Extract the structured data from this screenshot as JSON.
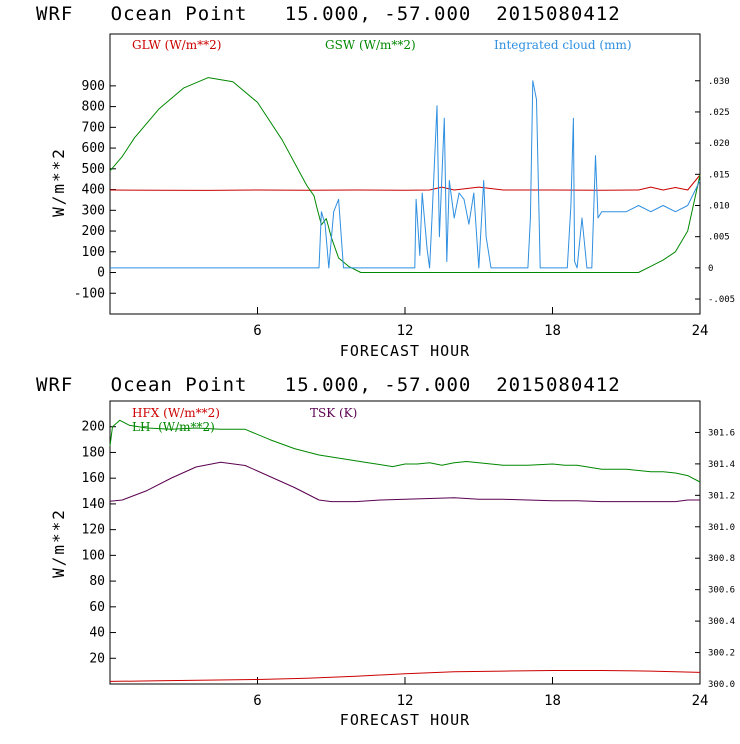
{
  "chart_data": [
    {
      "type": "line",
      "title": "WRF   Ocean Point   15.000, -57.000  2015080412",
      "xlabel": "FORECAST HOUR",
      "ylabel": "W/m**2",
      "xlim": [
        0,
        24
      ],
      "ylim": [
        -200,
        1150
      ],
      "xticks": [
        6,
        12,
        18,
        24
      ],
      "xtick_labels": [
        "6",
        "12",
        "18",
        "24"
      ],
      "yticks": [
        -100,
        0,
        100,
        200,
        300,
        400,
        500,
        600,
        700,
        800,
        900
      ],
      "ytick_labels": [
        "-100",
        "0",
        "100",
        "200",
        "300",
        "400",
        "500",
        "600",
        "700",
        "800",
        "900"
      ],
      "y2lim": [
        -0.0074,
        0.0375
      ],
      "y2ticks": [
        -0.005,
        0,
        0.005,
        0.01,
        0.015,
        0.02,
        0.025,
        0.03
      ],
      "y2tick_labels": [
        "-.005",
        "0",
        ".005",
        ".010",
        ".015",
        ".020",
        ".025",
        ".030"
      ],
      "series": [
        {
          "name": "GLW (W/m**2)",
          "color": "#cc0000",
          "axis": "left",
          "x": [
            0,
            2,
            4,
            6,
            8,
            10,
            12,
            13,
            13.5,
            14,
            15,
            16,
            18,
            20,
            21.5,
            22,
            22.5,
            23,
            23.5,
            24
          ],
          "y": [
            398,
            397,
            396,
            398,
            397,
            398,
            397,
            398,
            412,
            398,
            412,
            398,
            398,
            397,
            398,
            412,
            398,
            410,
            398,
            470
          ]
        },
        {
          "name": "GSW (W/m**2)",
          "color": "#008800",
          "axis": "left",
          "x": [
            0,
            0.5,
            1,
            2,
            3,
            4,
            5,
            6,
            7,
            8,
            8.3,
            8.4,
            8.6,
            8.8,
            9.0,
            9.3,
            9.7,
            10.2,
            12,
            16,
            20,
            21.5,
            22,
            22.5,
            23,
            23.5,
            24
          ],
          "y": [
            490,
            560,
            650,
            790,
            890,
            940,
            920,
            820,
            640,
            420,
            370,
            320,
            230,
            260,
            170,
            70,
            30,
            0,
            0,
            0,
            0,
            0,
            30,
            60,
            100,
            200,
            470
          ]
        },
        {
          "name": "Integrated cloud (mm)",
          "color": "#2f8fe0",
          "axis": "right",
          "x": [
            0,
            8.5,
            8.6,
            8.75,
            8.9,
            9.1,
            9.3,
            9.5,
            9.7,
            12.4,
            12.45,
            12.6,
            12.7,
            12.9,
            13.0,
            13.1,
            13.3,
            13.4,
            13.6,
            13.7,
            13.8,
            14.0,
            14.2,
            14.4,
            14.6,
            14.8,
            15.0,
            15.2,
            15.3,
            15.5,
            15.8,
            16.0,
            17.0,
            17.1,
            17.2,
            17.35,
            17.5,
            17.7,
            18.0,
            18.6,
            18.75,
            18.85,
            18.9,
            19.0,
            19.2,
            19.4,
            19.6,
            19.75,
            19.85,
            20.0,
            20.5,
            21.0,
            21.5,
            22.0,
            22.5,
            23.0,
            23.5,
            24
          ],
          "y": [
            0,
            0,
            0.009,
            0.007,
            0.0,
            0.009,
            0.011,
            0.0,
            0.0,
            0.0,
            0.011,
            0.002,
            0.012,
            0.003,
            0.0,
            0.008,
            0.026,
            0.005,
            0.024,
            0.001,
            0.014,
            0.008,
            0.012,
            0.011,
            0.007,
            0.012,
            0.0,
            0.014,
            0.005,
            0.0,
            0.0,
            0.0,
            0.0,
            0.008,
            0.03,
            0.027,
            0.0,
            0.0,
            0.0,
            0.0,
            0.01,
            0.024,
            0.001,
            0.0,
            0.008,
            0.0,
            0.0,
            0.018,
            0.008,
            0.009,
            0.009,
            0.009,
            0.01,
            0.009,
            0.01,
            0.009,
            0.01,
            0.014
          ]
        }
      ]
    },
    {
      "type": "line",
      "title": "WRF   Ocean Point   15.000, -57.000  2015080412",
      "xlabel": "FORECAST HOUR",
      "ylabel": "W/m**2",
      "xlim": [
        0,
        24
      ],
      "ylim": [
        0,
        220
      ],
      "xticks": [
        6,
        12,
        18,
        24
      ],
      "xtick_labels": [
        "6",
        "12",
        "18",
        "24"
      ],
      "yticks": [
        20,
        40,
        60,
        80,
        100,
        120,
        140,
        160,
        180,
        200
      ],
      "ytick_labels": [
        "20",
        "40",
        "60",
        "80",
        "100",
        "120",
        "140",
        "160",
        "180",
        "200"
      ],
      "y2lim": [
        300.0,
        301.8
      ],
      "y2ticks": [
        300.0,
        300.2,
        300.4,
        300.6,
        300.8,
        301.0,
        301.2,
        301.4,
        301.6
      ],
      "y2tick_labels": [
        "300.0",
        "300.2",
        "300.4",
        "300.6",
        "300.8",
        "301.0",
        "301.2",
        "301.4",
        "301.6"
      ],
      "series": [
        {
          "name": "HFX (W/m**2)",
          "color": "#cc0000",
          "axis": "left",
          "x": [
            0,
            2,
            4,
            6,
            8,
            10,
            12,
            14,
            16,
            18,
            20,
            22,
            24
          ],
          "y": [
            2,
            2.5,
            3,
            3.5,
            4.5,
            6,
            8,
            9.5,
            10,
            10.5,
            10.5,
            10,
            9
          ]
        },
        {
          "name": "LH  (W/m**2)",
          "color": "#008800",
          "axis": "left",
          "x": [
            0,
            0.1,
            0.4,
            0.8,
            1.5,
            2.5,
            3.5,
            4.5,
            5.5,
            6.5,
            7.5,
            8.5,
            9.5,
            10.5,
            11.5,
            12,
            12.5,
            13,
            13.5,
            14,
            14.5,
            15,
            15.5,
            16,
            17,
            18,
            18.5,
            19,
            20,
            21,
            22,
            22.5,
            23,
            23.5,
            24
          ],
          "y": [
            185,
            200,
            205,
            201,
            199,
            198,
            199,
            198,
            198,
            190,
            183,
            178,
            175,
            172,
            169,
            171,
            171,
            172,
            170,
            172,
            173,
            172,
            171,
            170,
            170,
            171,
            170,
            170,
            167,
            167,
            165,
            165,
            164,
            162,
            157
          ]
        },
        {
          "name": "TSK (K)",
          "color": "#5a0050",
          "axis": "right",
          "x": [
            0,
            0.5,
            1.5,
            2.5,
            3.5,
            4.5,
            5.5,
            6.5,
            7.5,
            8.5,
            9,
            10,
            11,
            12,
            13,
            14,
            15,
            16,
            17,
            18,
            19,
            20,
            21,
            22,
            23,
            23.5,
            24
          ],
          "y": [
            301.163,
            301.17,
            301.23,
            301.31,
            301.38,
            301.41,
            301.39,
            301.32,
            301.25,
            301.17,
            301.16,
            301.16,
            301.17,
            301.175,
            301.18,
            301.185,
            301.175,
            301.175,
            301.17,
            301.165,
            301.165,
            301.16,
            301.16,
            301.16,
            301.16,
            301.17,
            301.17
          ]
        }
      ]
    }
  ]
}
